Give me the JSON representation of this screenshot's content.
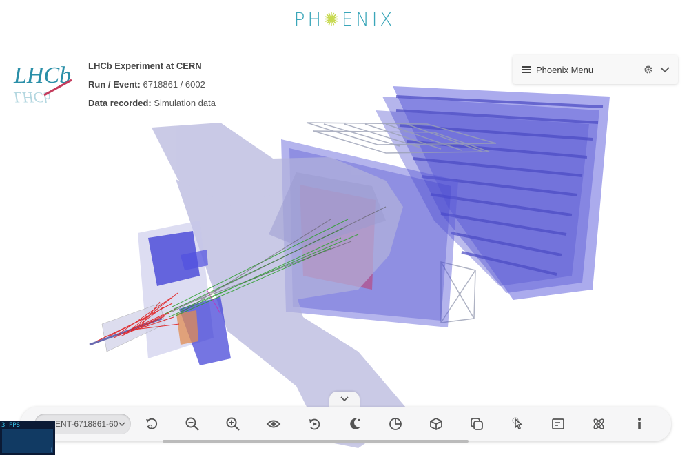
{
  "app": {
    "logo_text_a": "PH",
    "logo_text_b": "✺",
    "logo_text_c": "ENIX"
  },
  "experiment": {
    "logo_text": "LHCb",
    "title": "LHCb Experiment at CERN",
    "run_label": "Run / Event:",
    "run_value": "6718861 / 6002",
    "data_label": "Data recorded:",
    "data_value": "Simulation data"
  },
  "menu": {
    "title": "Phoenix Menu",
    "icons": [
      "list-icon",
      "gear-icon",
      "chevron-down-icon"
    ]
  },
  "toolbar": {
    "event_select_value": "EVENT-6718861-60",
    "buttons": [
      {
        "name": "auto-rotate-button",
        "icon": "auto-rotate-icon"
      },
      {
        "name": "zoom-out-button",
        "icon": "zoom-out-icon"
      },
      {
        "name": "zoom-in-button",
        "icon": "zoom-in-icon"
      },
      {
        "name": "view-options-button",
        "icon": "eye-icon"
      },
      {
        "name": "animate-button",
        "icon": "animate-icon"
      },
      {
        "name": "dark-theme-button",
        "icon": "moon-icon"
      },
      {
        "name": "clipping-button",
        "icon": "clipping-icon"
      },
      {
        "name": "geometry-button",
        "icon": "cube-icon"
      },
      {
        "name": "overlay-button",
        "icon": "overlay-icon"
      },
      {
        "name": "object-selection-button",
        "icon": "pointer-icon"
      },
      {
        "name": "info-panel-button",
        "icon": "panel-icon"
      },
      {
        "name": "event-data-button",
        "icon": "atom-icon"
      },
      {
        "name": "info-button",
        "icon": "info-icon"
      }
    ]
  },
  "stats": {
    "fps_label": "3 FPS",
    "tick": "l"
  },
  "colors": {
    "accent": "#3aa6b9",
    "detector_blue": "#3b3bd6",
    "detector_lavender": "#b3b3dc",
    "track_red": "#e21f1f",
    "track_green": "#2ca02c"
  }
}
